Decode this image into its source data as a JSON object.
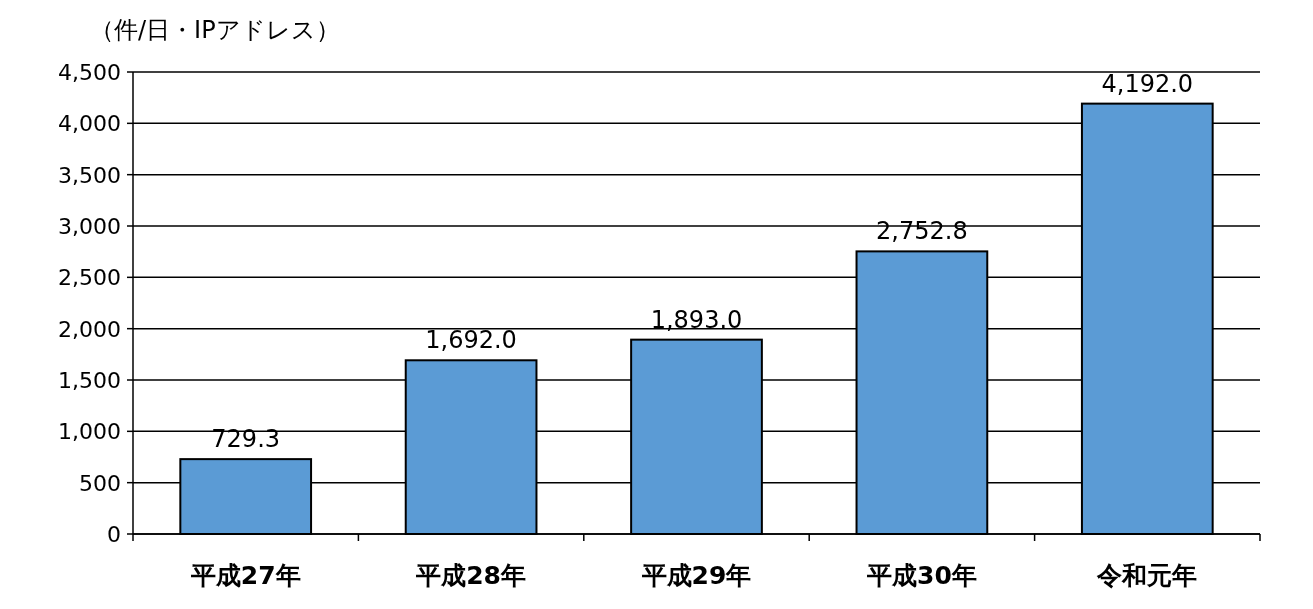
{
  "chart_data": {
    "type": "bar",
    "ylabel": "（件/日・IPアドレス）",
    "categories": [
      "平成27年",
      "平成28年",
      "平成29年",
      "平成30年",
      "令和元年"
    ],
    "values": [
      729.3,
      1692.0,
      1893.0,
      2752.8,
      4192.0
    ],
    "value_labels": [
      "729.3",
      "1,692.0",
      "1,893.0",
      "2,752.8",
      "4,192.0"
    ],
    "color": "#5b9bd5",
    "ylim": [
      0,
      4500
    ],
    "yticks": [
      {
        "value": 0,
        "label": "0"
      },
      {
        "value": 500,
        "label": "500"
      },
      {
        "value": 1000,
        "label": "1,000"
      },
      {
        "value": 1500,
        "label": "1,500"
      },
      {
        "value": 2000,
        "label": "2,000"
      },
      {
        "value": 2500,
        "label": "2,500"
      },
      {
        "value": 3000,
        "label": "3,000"
      },
      {
        "value": 3500,
        "label": "3,500"
      },
      {
        "value": 4000,
        "label": "4,000"
      },
      {
        "value": 4500,
        "label": "4,500"
      }
    ],
    "grid": "y"
  }
}
